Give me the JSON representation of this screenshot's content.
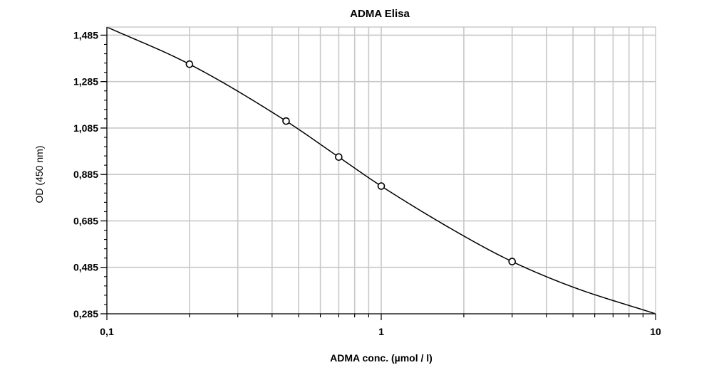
{
  "chart_data": {
    "type": "scatter",
    "title": "ADMA Elisa",
    "xlabel": "ADMA conc. (µmol / l)",
    "ylabel": "OD (450 nm)",
    "x_scale": "log",
    "xlim": [
      0.1,
      10
    ],
    "ylim": [
      0.285,
      1.52
    ],
    "grid": true,
    "x_ticks": [
      0.1,
      1,
      10
    ],
    "x_tick_labels": [
      "0,1",
      "1",
      "10"
    ],
    "y_ticks": [
      0.285,
      0.485,
      0.685,
      0.885,
      1.085,
      1.285,
      1.485
    ],
    "y_tick_labels": [
      "0,285",
      "0,485",
      "0,685",
      "0,885",
      "1,085",
      "1,285",
      "1,485"
    ],
    "series": [
      {
        "kind": "points",
        "marker": "open-circle",
        "points": [
          {
            "x": 0.2,
            "y": 1.36
          },
          {
            "x": 0.45,
            "y": 1.115
          },
          {
            "x": 0.7,
            "y": 0.96
          },
          {
            "x": 1.0,
            "y": 0.835
          },
          {
            "x": 3.0,
            "y": 0.51
          }
        ]
      },
      {
        "kind": "fit-curve",
        "curve": [
          {
            "x": 0.1,
            "y": 1.52
          },
          {
            "x": 0.2,
            "y": 1.36
          },
          {
            "x": 0.45,
            "y": 1.115
          },
          {
            "x": 0.7,
            "y": 0.96
          },
          {
            "x": 1.0,
            "y": 0.835
          },
          {
            "x": 2.0,
            "y": 0.62
          },
          {
            "x": 3.0,
            "y": 0.51
          },
          {
            "x": 5.0,
            "y": 0.4
          },
          {
            "x": 10.0,
            "y": 0.285
          }
        ]
      }
    ]
  }
}
